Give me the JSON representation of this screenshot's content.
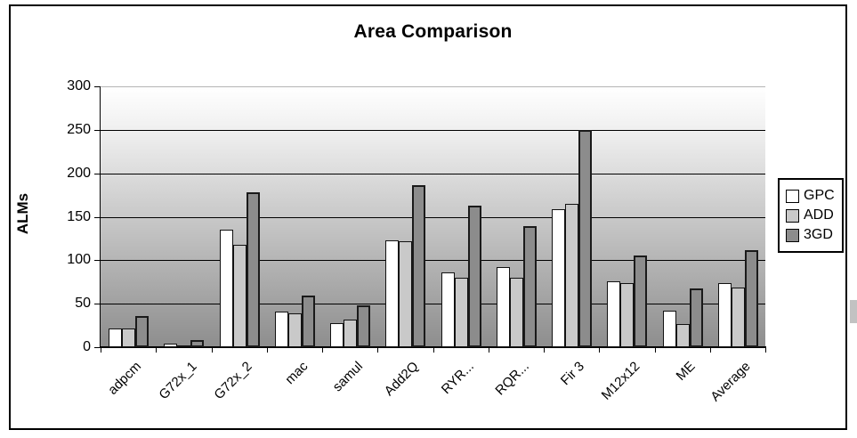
{
  "chart_data": {
    "type": "bar",
    "title": "Area Comparison",
    "xlabel": "",
    "ylabel": "ALMs",
    "ylim": [
      0,
      300
    ],
    "yticks": [
      0,
      50,
      100,
      150,
      200,
      250,
      300
    ],
    "grid": true,
    "legend_position": "right",
    "plot_background": {
      "top": "#ffffff",
      "bottom": "#8d8d8d"
    },
    "categories": [
      "adpcm",
      "G72x_1",
      "G72x_2",
      "mac",
      "samul",
      "Add2Q",
      "RYR...",
      "RQR...",
      "Fir 3",
      "M12x12",
      "ME",
      "Average"
    ],
    "series": [
      {
        "name": "GPC",
        "color": "#ffffff",
        "values": [
          22,
          4,
          135,
          41,
          28,
          123,
          86,
          92,
          159,
          76,
          42,
          74
        ]
      },
      {
        "name": "ADD",
        "color": "#c9c9c9",
        "values": [
          22,
          2,
          118,
          39,
          32,
          122,
          80,
          80,
          165,
          74,
          27,
          69
        ]
      },
      {
        "name": "3GD",
        "color": "#8c8c8c",
        "values": [
          36,
          8,
          178,
          59,
          48,
          186,
          163,
          139,
          250,
          105,
          68,
          112
        ]
      }
    ]
  }
}
